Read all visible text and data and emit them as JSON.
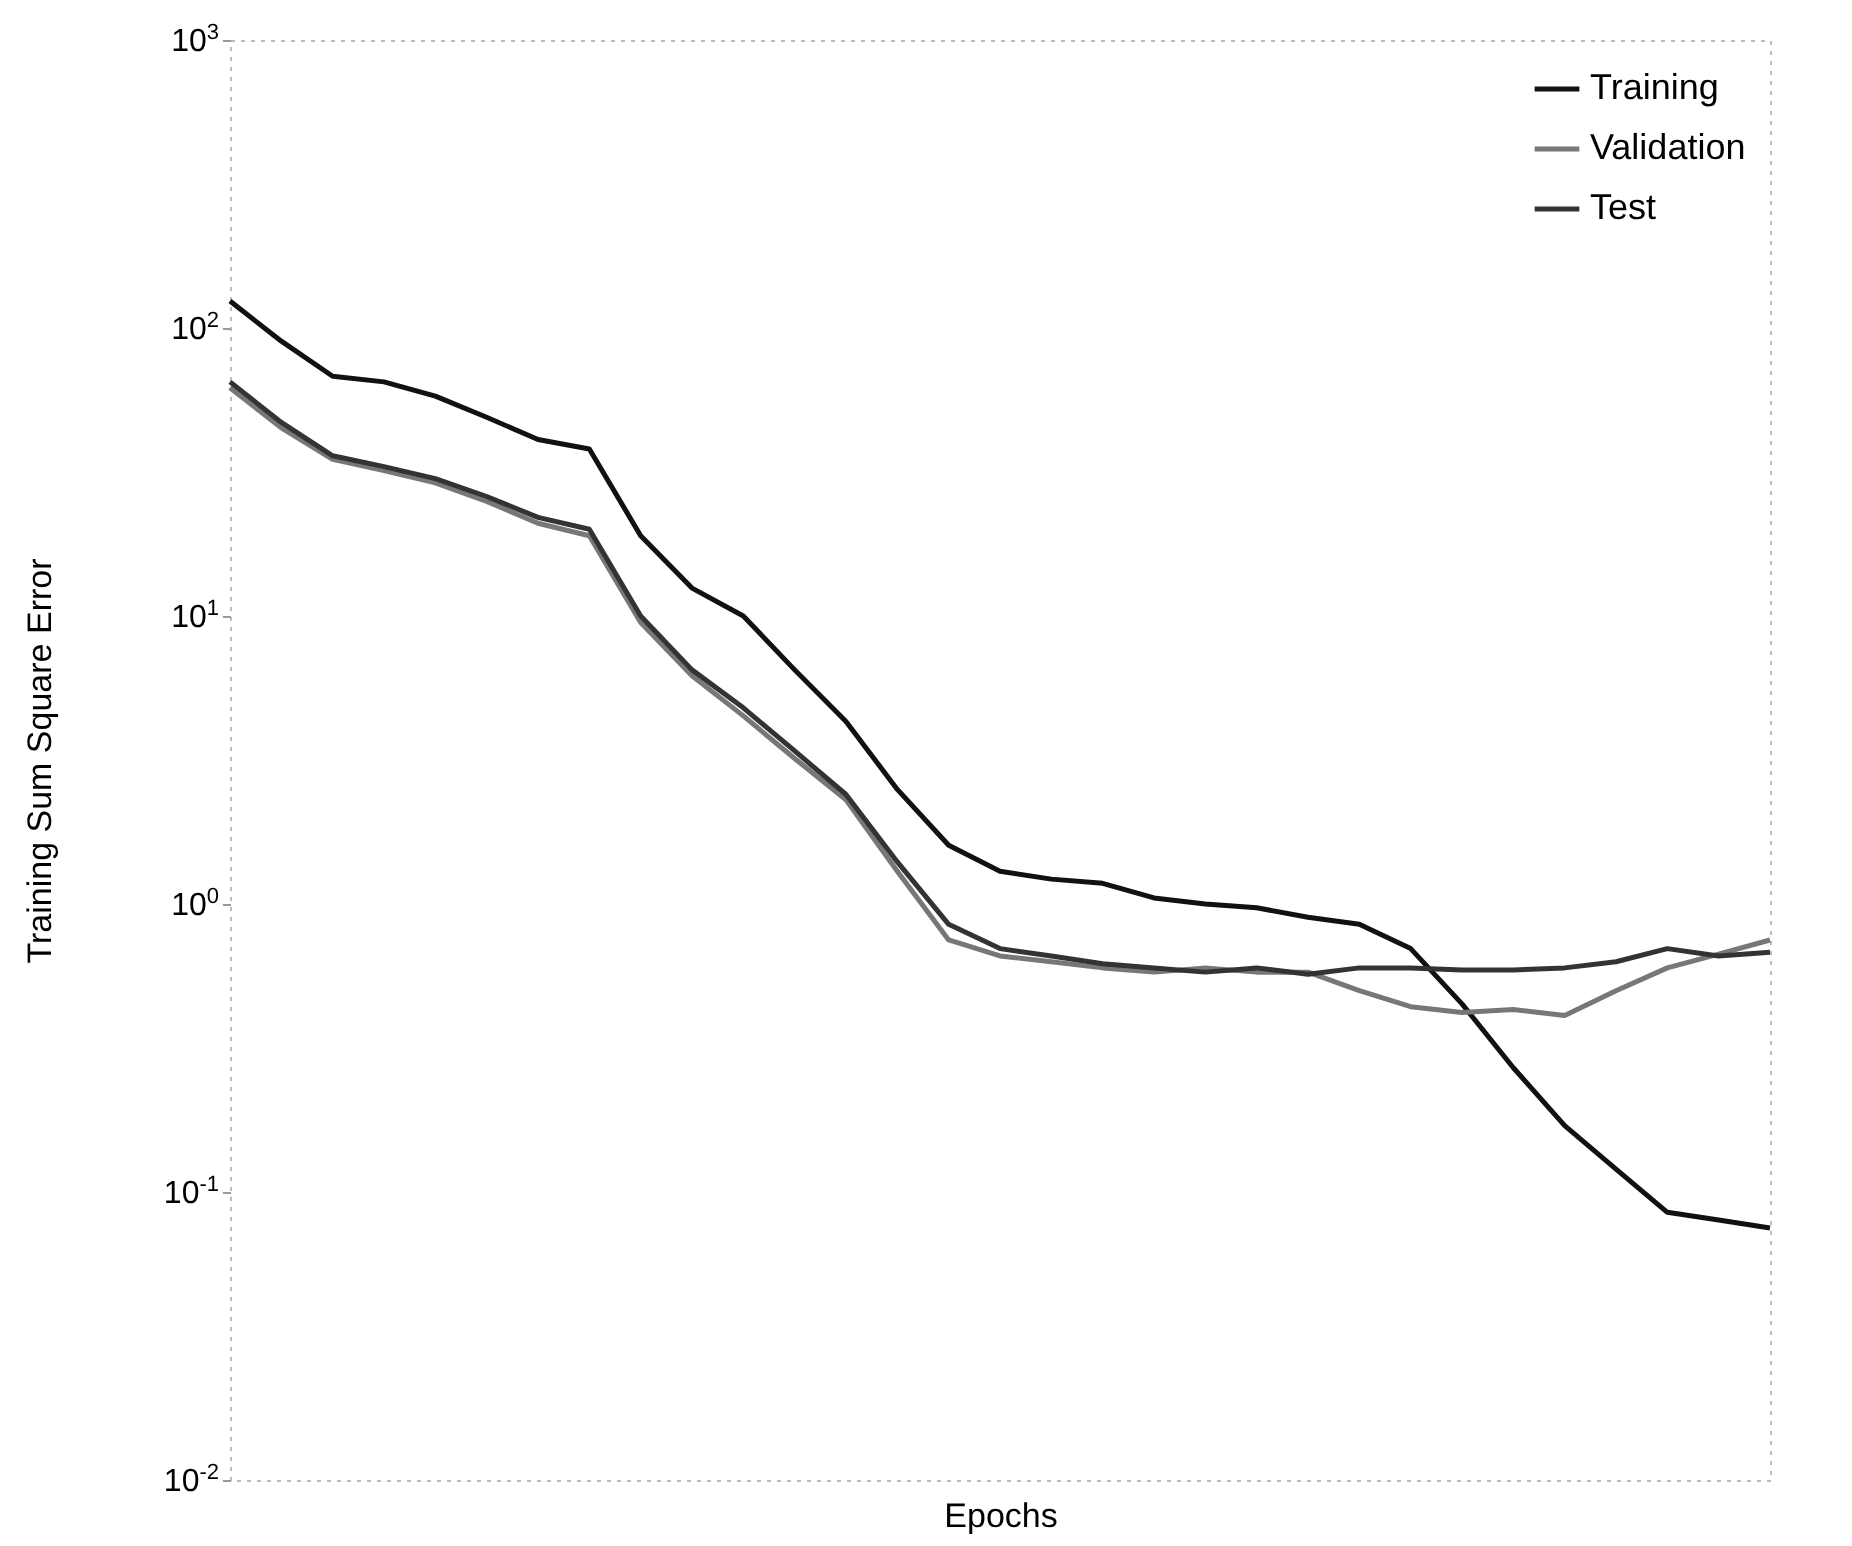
{
  "chart_data": {
    "type": "line",
    "xlabel": "Epochs",
    "ylabel": "Training Sum Square Error",
    "log": "y",
    "ylim": [
      0.01,
      1000
    ],
    "yticks": [
      {
        "value": 0.01,
        "label": "10$^{-2}$"
      },
      {
        "value": 0.1,
        "label": "10$^{-1}$"
      },
      {
        "value": 1,
        "label": "10$^{0}$"
      },
      {
        "value": 10,
        "label": "10$^{1}$"
      },
      {
        "value": 100,
        "label": "10$^{2}$"
      },
      {
        "value": 1000,
        "label": "10$^{3}$"
      }
    ],
    "categories": [
      null,
      null,
      null,
      null,
      null,
      null,
      null,
      null,
      null,
      null,
      null,
      null,
      null,
      null,
      null,
      null,
      null,
      null,
      null,
      null,
      null,
      null,
      null,
      null,
      null,
      null,
      null,
      null,
      null,
      null,
      null
    ],
    "tick_labels": "y",
    "grid": false,
    "legend": "top right",
    "series": [
      {
        "name": "Training",
        "color": "#111111",
        "values": [
          124,
          90,
          68,
          65,
          58,
          49,
          41,
          38,
          19,
          12.5,
          10,
          6.5,
          4.3,
          2.5,
          1.6,
          1.3,
          1.22,
          1.18,
          1.05,
          1.0,
          0.97,
          0.9,
          0.85,
          0.7,
          0.45,
          0.27,
          0.17,
          0.12,
          0.085,
          0.08,
          0.075
        ]
      },
      {
        "name": "Validation",
        "color": "#777777",
        "values": [
          62,
          45,
          35,
          32,
          29,
          25,
          21,
          19,
          9.5,
          6.2,
          4.5,
          3.2,
          2.3,
          1.3,
          0.75,
          0.66,
          0.63,
          0.6,
          0.58,
          0.6,
          0.58,
          0.58,
          0.5,
          0.44,
          0.42,
          0.43,
          0.41,
          0.5,
          0.6,
          0.67,
          0.75
        ]
      },
      {
        "name": "Test",
        "color": "#333333",
        "values": [
          65,
          47,
          36,
          33,
          30,
          26,
          22,
          20,
          10,
          6.5,
          4.8,
          3.4,
          2.4,
          1.4,
          0.85,
          0.7,
          0.66,
          0.62,
          0.6,
          0.58,
          0.6,
          0.57,
          0.6,
          0.6,
          0.59,
          0.59,
          0.6,
          0.63,
          0.7,
          0.66,
          0.68
        ]
      }
    ]
  }
}
